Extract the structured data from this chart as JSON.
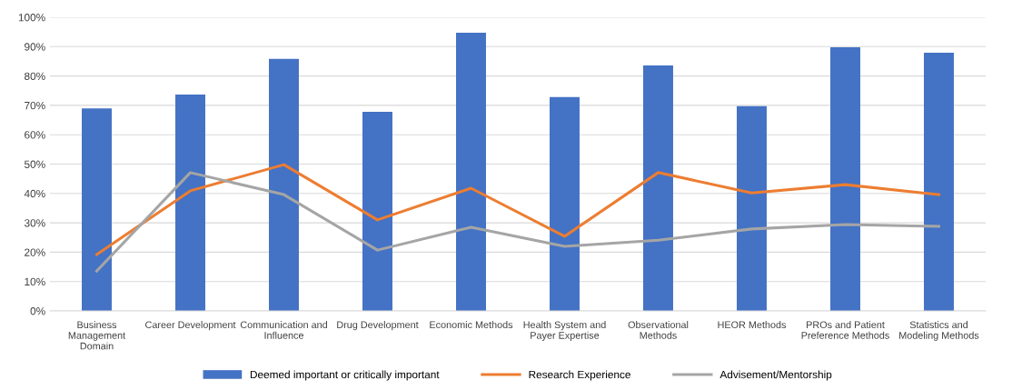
{
  "chart_data": {
    "type": "bar",
    "categories": [
      "Business\nManagement\nDomain",
      "Career Development",
      "Communication and\nInfluence",
      "Drug Development",
      "Economic Methods",
      "Health System and\nPayer Expertise",
      "Observational\nMethods",
      "HEOR Methods",
      "PROs and Patient\nPreference Methods",
      "Statistics and\nModeling Methods"
    ],
    "series": [
      {
        "name": "Deemed important or critically important",
        "color": "#4472c4",
        "values": [
          69.0,
          73.7,
          85.8,
          67.8,
          94.7,
          72.8,
          83.6,
          69.7,
          89.8,
          87.9
        ]
      },
      {
        "name": "Research Experience",
        "type": "line",
        "color": "#ed7d31",
        "values": [
          19.2,
          40.9,
          49.8,
          31.0,
          41.8,
          25.4,
          47.1,
          40.2,
          43.0,
          39.6
        ]
      },
      {
        "name": "Advisement/Mentorship",
        "type": "line",
        "color": "#a5a5a5",
        "values": [
          13.6,
          47.1,
          39.6,
          20.7,
          28.5,
          22.0,
          24.1,
          27.9,
          29.4,
          28.8
        ]
      }
    ],
    "ylim": [
      0,
      100
    ],
    "yticks": [
      {
        "value": 0,
        "label": "0%"
      },
      {
        "value": 10,
        "label": "10%"
      },
      {
        "value": 20,
        "label": "20%"
      },
      {
        "value": 30,
        "label": "30%"
      },
      {
        "value": 40,
        "label": "40%"
      },
      {
        "value": 50,
        "label": "50%"
      },
      {
        "value": 60,
        "label": "60%"
      },
      {
        "value": 70,
        "label": "70%"
      },
      {
        "value": 80,
        "label": "80%"
      },
      {
        "value": 90,
        "label": "90%"
      },
      {
        "value": 100,
        "label": "100%"
      }
    ],
    "grid": "y",
    "legend": "bottom",
    "marker": "none"
  }
}
